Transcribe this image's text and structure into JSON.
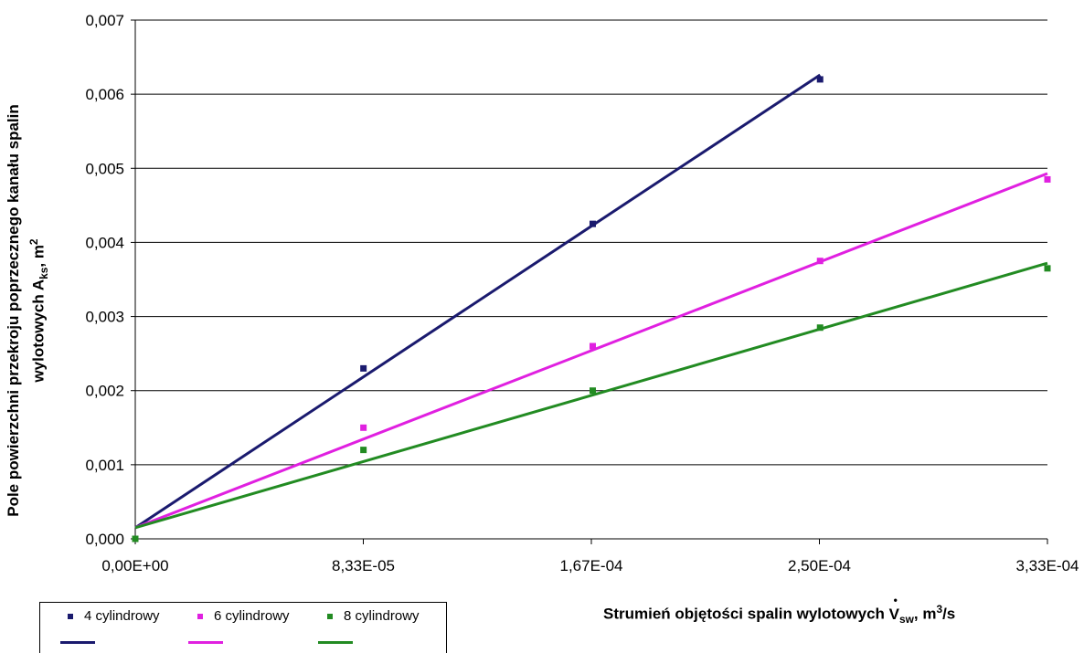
{
  "chart_data": {
    "type": "scatter",
    "ylabel_lines": [
      "Pole powierzchni przekroju poprzecznego kanału spalin",
      "wylotowych A",
      "ks",
      ", m",
      "2"
    ],
    "xlabel_parts": [
      "Strumień objętości spalin wylotowych ",
      "V",
      "sw",
      ", m",
      "3",
      "/s"
    ],
    "x_ticks": [
      "0,00E+00",
      "8,33E-05",
      "1,67E-04",
      "2,50E-04",
      "3,33E-04"
    ],
    "y_ticks": [
      "0,000",
      "0,001",
      "0,002",
      "0,003",
      "0,004",
      "0,005",
      "0,006",
      "0,007"
    ],
    "xlim": [
      0,
      0.000333
    ],
    "ylim": [
      0,
      0.007
    ],
    "grid": "horizontal",
    "legend_position": "bottom-left",
    "series": [
      {
        "name": "4 cylindrowy",
        "color": "#1a1a6e",
        "x": [
          0,
          8.33e-05,
          0.000167,
          0.00025
        ],
        "y": [
          0.0,
          0.0023,
          0.00425,
          0.0062
        ],
        "trend": [
          [
            0,
            0.00015
          ],
          [
            0.00025,
            0.00626
          ]
        ]
      },
      {
        "name": "6 cylindrowy",
        "color": "#e020e0",
        "x": [
          0,
          8.33e-05,
          0.000167,
          0.00025,
          0.000333
        ],
        "y": [
          0.0,
          0.0015,
          0.0026,
          0.00375,
          0.00485
        ],
        "trend": [
          [
            0,
            0.00015
          ],
          [
            0.000333,
            0.00493
          ]
        ]
      },
      {
        "name": "8 cylindrowy",
        "color": "#228b22",
        "x": [
          0,
          8.33e-05,
          0.000167,
          0.00025,
          0.000333
        ],
        "y": [
          0.0,
          0.0012,
          0.002,
          0.00285,
          0.00365
        ],
        "trend": [
          [
            0,
            0.00015
          ],
          [
            0.000333,
            0.00372
          ]
        ]
      }
    ]
  }
}
